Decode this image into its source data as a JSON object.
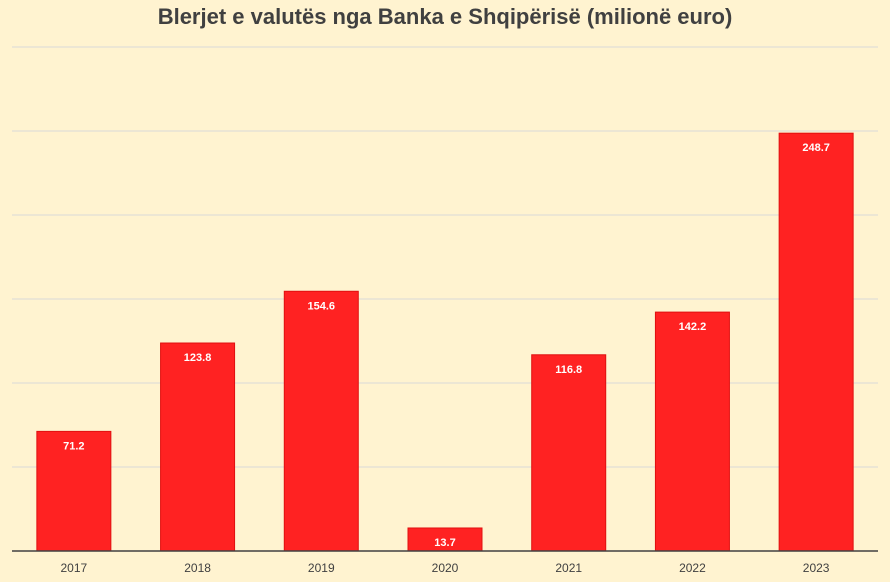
{
  "chart_data": {
    "type": "bar",
    "title": "Blerjet e valutës nga Banka e Shqipërisë (milionë euro)",
    "categories": [
      "2017",
      "2018",
      "2019",
      "2020",
      "2021",
      "2022",
      "2023"
    ],
    "values": [
      71.2,
      123.8,
      154.6,
      13.7,
      116.8,
      142.2,
      248.7
    ],
    "data_labels": [
      "71.2",
      "123.8",
      "154.6",
      "13.7",
      "116.8",
      "142.2",
      "248.7"
    ],
    "xlabel": "",
    "ylabel": "",
    "ylim": [
      0,
      300
    ],
    "grid_step": 50,
    "grid": true,
    "bar_color": "#ff2222",
    "background_color": "#fff3d0"
  }
}
